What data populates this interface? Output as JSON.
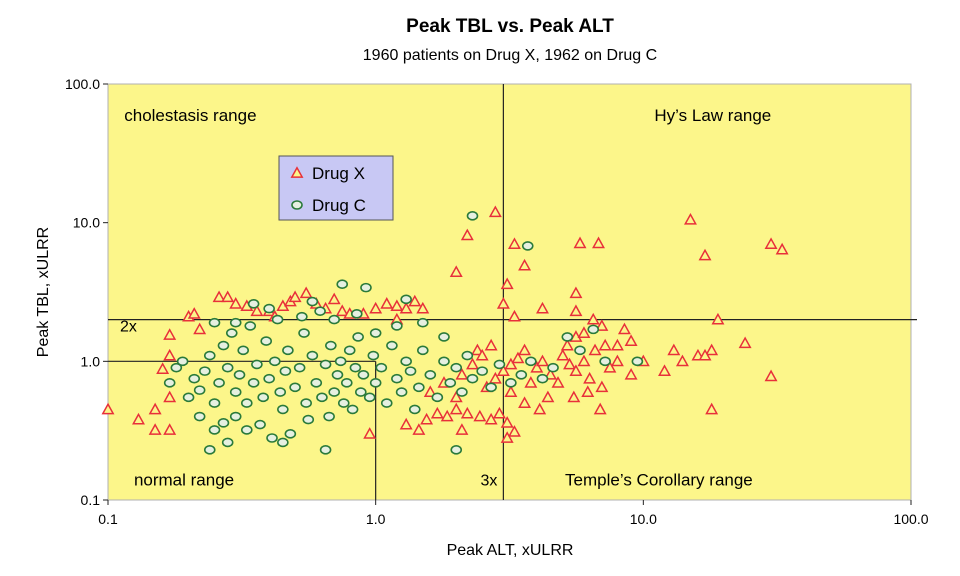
{
  "chart_data": {
    "type": "scatter",
    "title": "Peak TBL vs. Peak ALT",
    "subtitle": "1960 patients on Drug X, 1962 on Drug C",
    "xlabel": "Peak ALT, xULRR",
    "ylabel": "Peak TBL, xULRR",
    "x_scale": "log",
    "y_scale": "log",
    "xlim": [
      0.1,
      100
    ],
    "ylim": [
      0.1,
      100
    ],
    "x_ticks": [
      "0.1",
      "1.0",
      "10.0",
      "100.0"
    ],
    "y_ticks": [
      "0.1",
      "1.0",
      "10.0",
      "100.0"
    ],
    "background_color": "#fcf68a",
    "legend": {
      "position": "upper-left-inside"
    },
    "reference_lines": [
      {
        "axis": "x",
        "value": 3,
        "label": "3x"
      },
      {
        "axis": "y",
        "value": 2,
        "label": "2x"
      },
      {
        "axis": "x",
        "value": 1,
        "label": ""
      },
      {
        "axis": "y",
        "value": 1,
        "label": ""
      }
    ],
    "region_labels": [
      {
        "id": "cholestasis",
        "text": "cholestasis range",
        "x": 0.115,
        "y": 60
      },
      {
        "id": "hys-law",
        "text": "Hy’s Law range",
        "x": 11,
        "y": 60
      },
      {
        "id": "normal",
        "text": "normal range",
        "x": 0.125,
        "y": 0.14
      },
      {
        "id": "temples",
        "text": "Temple’s Corollary range",
        "x": 5.1,
        "y": 0.14
      }
    ],
    "series": [
      {
        "name": "Drug X",
        "marker": "triangle",
        "color": "#e8303a",
        "fill": "#fcf68a",
        "points": [
          [
            0.1,
            0.45
          ],
          [
            0.13,
            0.38
          ],
          [
            0.15,
            0.32
          ],
          [
            0.15,
            0.45
          ],
          [
            0.16,
            0.88
          ],
          [
            0.17,
            0.32
          ],
          [
            0.17,
            0.55
          ],
          [
            0.17,
            1.1
          ],
          [
            0.17,
            1.55
          ],
          [
            0.2,
            2.1
          ],
          [
            0.21,
            2.2
          ],
          [
            0.22,
            1.7
          ],
          [
            0.26,
            2.9
          ],
          [
            0.28,
            2.9
          ],
          [
            0.3,
            2.6
          ],
          [
            0.33,
            2.5
          ],
          [
            0.36,
            2.3
          ],
          [
            0.4,
            2.3
          ],
          [
            0.42,
            2.1
          ],
          [
            0.45,
            2.5
          ],
          [
            0.48,
            2.7
          ],
          [
            0.5,
            2.9
          ],
          [
            0.55,
            3.1
          ],
          [
            0.6,
            2.6
          ],
          [
            0.65,
            2.4
          ],
          [
            0.7,
            2.8
          ],
          [
            0.75,
            2.3
          ],
          [
            0.8,
            2.2
          ],
          [
            0.9,
            2.2
          ],
          [
            1.0,
            2.4
          ],
          [
            1.1,
            2.6
          ],
          [
            1.2,
            2.5
          ],
          [
            1.3,
            2.4
          ],
          [
            1.4,
            2.7
          ],
          [
            1.5,
            2.4
          ],
          [
            1.2,
            2.0
          ],
          [
            0.95,
            0.3
          ],
          [
            1.3,
            0.35
          ],
          [
            1.45,
            0.32
          ],
          [
            1.55,
            0.38
          ],
          [
            1.7,
            0.42
          ],
          [
            1.85,
            0.4
          ],
          [
            2.0,
            0.45
          ],
          [
            2.2,
            0.42
          ],
          [
            2.45,
            0.4
          ],
          [
            2.7,
            0.38
          ],
          [
            2.9,
            0.42
          ],
          [
            3.1,
            0.36
          ],
          [
            3.3,
            0.31
          ],
          [
            1.6,
            0.6
          ],
          [
            1.8,
            0.7
          ],
          [
            2.0,
            0.55
          ],
          [
            2.1,
            0.8
          ],
          [
            2.3,
            0.95
          ],
          [
            2.4,
            1.2
          ],
          [
            2.6,
            0.65
          ],
          [
            2.8,
            0.75
          ],
          [
            3.0,
            0.85
          ],
          [
            3.2,
            0.95
          ],
          [
            3.4,
            1.05
          ],
          [
            3.6,
            1.2
          ],
          [
            3.8,
            0.7
          ],
          [
            4.0,
            0.9
          ],
          [
            4.2,
            1.0
          ],
          [
            4.5,
            0.8
          ],
          [
            4.8,
            0.7
          ],
          [
            5.0,
            1.1
          ],
          [
            5.3,
            0.95
          ],
          [
            5.6,
            0.85
          ],
          [
            6.0,
            1.0
          ],
          [
            6.3,
            0.75
          ],
          [
            6.6,
            1.2
          ],
          [
            7.0,
            0.65
          ],
          [
            7.5,
            0.9
          ],
          [
            8.0,
            1.0
          ],
          [
            9.0,
            0.8
          ],
          [
            10.0,
            1.0
          ],
          [
            12.0,
            0.85
          ],
          [
            14.0,
            1.0
          ],
          [
            16.0,
            1.1
          ],
          [
            18.0,
            1.2
          ],
          [
            5.5,
            0.55
          ],
          [
            6.2,
            0.6
          ],
          [
            6.9,
            0.45
          ],
          [
            3.6,
            0.5
          ],
          [
            4.1,
            0.45
          ],
          [
            4.4,
            0.55
          ],
          [
            3.2,
            0.6
          ],
          [
            2.5,
            1.1
          ],
          [
            2.7,
            1.3
          ],
          [
            5.2,
            1.3
          ],
          [
            5.6,
            1.5
          ],
          [
            6.0,
            1.6
          ],
          [
            7.0,
            1.8
          ],
          [
            8.0,
            1.3
          ],
          [
            9.0,
            1.4
          ],
          [
            8.5,
            1.7
          ],
          [
            13.0,
            1.2
          ],
          [
            2.8,
            11.9
          ],
          [
            3.0,
            2.6
          ],
          [
            2.0,
            4.4
          ],
          [
            2.2,
            8.1
          ],
          [
            3.3,
            7.0
          ],
          [
            3.6,
            4.9
          ],
          [
            3.1,
            3.6
          ],
          [
            3.3,
            2.1
          ],
          [
            4.2,
            2.4
          ],
          [
            5.6,
            3.1
          ],
          [
            5.8,
            7.1
          ],
          [
            6.8,
            7.1
          ],
          [
            6.5,
            2.0
          ],
          [
            5.6,
            2.3
          ],
          [
            7.2,
            1.3
          ],
          [
            15.0,
            10.5
          ],
          [
            17.0,
            5.8
          ],
          [
            19.0,
            2.0
          ],
          [
            24.0,
            1.35
          ],
          [
            30.0,
            7.0
          ],
          [
            33.0,
            6.4
          ],
          [
            30.0,
            0.78
          ],
          [
            18.0,
            0.45
          ],
          [
            17.0,
            1.1
          ],
          [
            3.1,
            0.28
          ],
          [
            2.1,
            0.32
          ]
        ]
      },
      {
        "name": "Drug C",
        "marker": "circle",
        "color": "#2a7a3a",
        "fill": "#e6f0e1",
        "points": [
          [
            0.17,
            0.7
          ],
          [
            0.18,
            0.9
          ],
          [
            0.19,
            1.0
          ],
          [
            0.2,
            0.55
          ],
          [
            0.21,
            0.75
          ],
          [
            0.22,
            0.4
          ],
          [
            0.22,
            0.62
          ],
          [
            0.23,
            0.85
          ],
          [
            0.24,
            1.1
          ],
          [
            0.25,
            0.32
          ],
          [
            0.25,
            0.5
          ],
          [
            0.26,
            0.7
          ],
          [
            0.27,
            1.3
          ],
          [
            0.28,
            0.9
          ],
          [
            0.28,
            0.26
          ],
          [
            0.29,
            1.6
          ],
          [
            0.3,
            0.6
          ],
          [
            0.3,
            0.4
          ],
          [
            0.31,
            0.8
          ],
          [
            0.32,
            1.2
          ],
          [
            0.33,
            0.5
          ],
          [
            0.34,
            1.8
          ],
          [
            0.35,
            0.7
          ],
          [
            0.36,
            0.95
          ],
          [
            0.37,
            0.35
          ],
          [
            0.38,
            0.55
          ],
          [
            0.39,
            1.4
          ],
          [
            0.4,
            0.75
          ],
          [
            0.41,
            0.28
          ],
          [
            0.42,
            1.0
          ],
          [
            0.43,
            2.0
          ],
          [
            0.44,
            0.6
          ],
          [
            0.45,
            0.45
          ],
          [
            0.46,
            0.85
          ],
          [
            0.47,
            1.2
          ],
          [
            0.48,
            0.3
          ],
          [
            0.5,
            0.65
          ],
          [
            0.52,
            0.9
          ],
          [
            0.54,
            1.6
          ],
          [
            0.55,
            0.5
          ],
          [
            0.56,
            0.38
          ],
          [
            0.58,
            1.1
          ],
          [
            0.6,
            0.7
          ],
          [
            0.62,
            2.3
          ],
          [
            0.63,
            0.55
          ],
          [
            0.65,
            0.95
          ],
          [
            0.67,
            0.4
          ],
          [
            0.68,
            1.3
          ],
          [
            0.7,
            0.6
          ],
          [
            0.72,
            0.8
          ],
          [
            0.74,
            1.0
          ],
          [
            0.75,
            3.6
          ],
          [
            0.76,
            0.5
          ],
          [
            0.78,
            0.7
          ],
          [
            0.8,
            1.2
          ],
          [
            0.82,
            0.45
          ],
          [
            0.84,
            0.9
          ],
          [
            0.86,
            1.5
          ],
          [
            0.88,
            0.6
          ],
          [
            0.9,
            0.8
          ],
          [
            0.92,
            3.4
          ],
          [
            0.95,
            0.55
          ],
          [
            0.98,
            1.1
          ],
          [
            1.0,
            0.7
          ],
          [
            1.05,
            0.9
          ],
          [
            1.1,
            0.5
          ],
          [
            1.15,
            1.3
          ],
          [
            1.2,
            0.75
          ],
          [
            1.25,
            0.6
          ],
          [
            1.3,
            1.0
          ],
          [
            1.35,
            0.85
          ],
          [
            1.4,
            0.45
          ],
          [
            1.45,
            0.65
          ],
          [
            1.5,
            1.2
          ],
          [
            1.6,
            0.8
          ],
          [
            1.7,
            0.55
          ],
          [
            1.8,
            1.0
          ],
          [
            1.9,
            0.7
          ],
          [
            2.0,
            0.9
          ],
          [
            2.1,
            0.6
          ],
          [
            2.2,
            1.1
          ],
          [
            2.3,
            0.75
          ],
          [
            2.5,
            0.85
          ],
          [
            2.7,
            0.65
          ],
          [
            2.9,
            0.95
          ],
          [
            3.2,
            0.7
          ],
          [
            3.5,
            0.8
          ],
          [
            3.8,
            1.0
          ],
          [
            4.2,
            0.75
          ],
          [
            4.6,
            0.9
          ],
          [
            5.2,
            1.5
          ],
          [
            5.8,
            1.2
          ],
          [
            6.5,
            1.7
          ],
          [
            7.2,
            1.0
          ],
          [
            9.5,
            1.0
          ],
          [
            3.7,
            6.8
          ],
          [
            2.3,
            11.2
          ],
          [
            2.0,
            0.23
          ],
          [
            0.65,
            0.23
          ],
          [
            0.45,
            0.26
          ],
          [
            0.24,
            0.23
          ],
          [
            0.27,
            0.36
          ],
          [
            0.33,
            0.32
          ],
          [
            0.35,
            2.6
          ],
          [
            0.3,
            1.9
          ],
          [
            0.53,
            2.1
          ],
          [
            0.58,
            2.7
          ],
          [
            0.7,
            2.0
          ],
          [
            0.85,
            2.2
          ],
          [
            1.0,
            1.6
          ],
          [
            1.2,
            1.8
          ],
          [
            1.5,
            1.9
          ],
          [
            1.8,
            1.5
          ],
          [
            1.3,
            2.8
          ],
          [
            0.4,
            2.4
          ],
          [
            0.25,
            1.9
          ]
        ]
      }
    ]
  }
}
